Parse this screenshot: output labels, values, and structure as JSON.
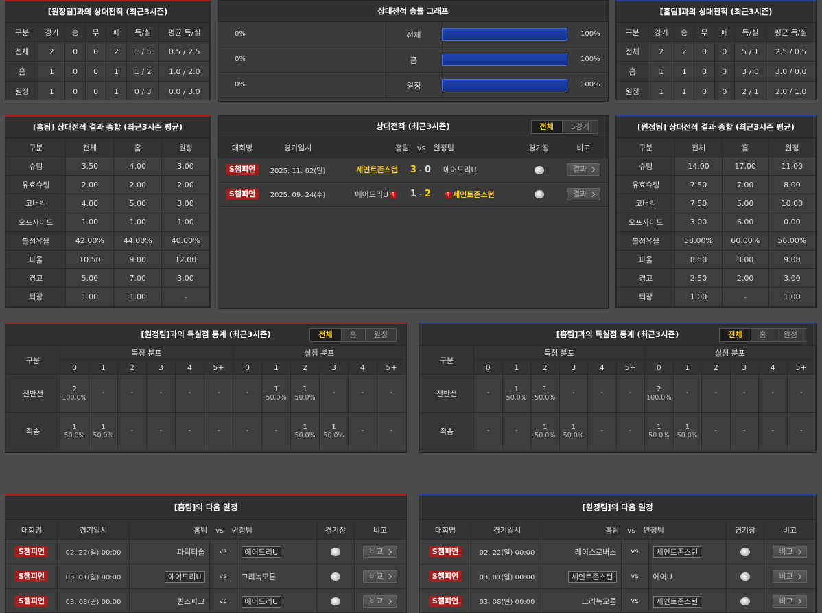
{
  "h2h_away": {
    "title": "[원정팀]과의 상대전적 (최근3시즌)",
    "columns": [
      "구분",
      "경기",
      "승",
      "무",
      "패",
      "득/실",
      "평균 득/실"
    ],
    "rows": [
      [
        "전체",
        "2",
        "0",
        "0",
        "2",
        "1 / 5",
        "0.5 / 2.5"
      ],
      [
        "홈",
        "1",
        "0",
        "0",
        "1",
        "1 / 2",
        "1.0 / 2.0"
      ],
      [
        "원정",
        "1",
        "0",
        "0",
        "1",
        "0 / 3",
        "0.0 / 3.0"
      ]
    ]
  },
  "winrate": {
    "title": "상대전적 승률 그래프",
    "bar_color": "#1f45b8",
    "rows": [
      {
        "label": "전체",
        "home": 0,
        "home_label": "0%",
        "away": 100,
        "away_label": "100%"
      },
      {
        "label": "홈",
        "home": 0,
        "home_label": "0%",
        "away": 100,
        "away_label": "100%"
      },
      {
        "label": "원정",
        "home": 0,
        "home_label": "0%",
        "away": 100,
        "away_label": "100%"
      }
    ]
  },
  "h2h_home": {
    "title": "[홈팀]과의 상대전적 (최근3시즌)",
    "columns": [
      "구분",
      "경기",
      "승",
      "무",
      "패",
      "득/실",
      "평균 득/실"
    ],
    "rows": [
      [
        "전체",
        "2",
        "2",
        "0",
        "0",
        "5 / 1",
        "2.5 / 0.5"
      ],
      [
        "홈",
        "1",
        "1",
        "0",
        "0",
        "3 / 0",
        "3.0 / 0.0"
      ],
      [
        "원정",
        "1",
        "1",
        "0",
        "0",
        "2 / 1",
        "2.0 / 1.0"
      ]
    ]
  },
  "summary_home": {
    "title": "[홈팀] 상대전적 결과 종합 (최근3시즌 평균)",
    "columns": [
      "구분",
      "전체",
      "홈",
      "원정"
    ],
    "rows": [
      [
        "슈팅",
        "3.50",
        "4.00",
        "3.00"
      ],
      [
        "유효슈팅",
        "2.00",
        "2.00",
        "2.00"
      ],
      [
        "코너킥",
        "4.00",
        "5.00",
        "3.00"
      ],
      [
        "오프사이드",
        "1.00",
        "1.00",
        "1.00"
      ],
      [
        "볼점유율",
        "42.00%",
        "44.00%",
        "40.00%"
      ],
      [
        "파울",
        "10.50",
        "9.00",
        "12.00"
      ],
      [
        "경고",
        "5.00",
        "7.00",
        "3.00"
      ],
      [
        "퇴장",
        "1.00",
        "1.00",
        "-"
      ]
    ]
  },
  "history": {
    "title": "상대전적 (최근3시즌)",
    "tabs": [
      "전체",
      "5경기"
    ],
    "columns": [
      "대회명",
      "경기일시",
      "홈팀",
      "vs",
      "원정팀",
      "경기장",
      "비고"
    ],
    "matches": [
      {
        "league": "S챔피언",
        "date": "2025. 11. 02(일)",
        "home": "세인트존스턴",
        "home_score": "3",
        "sep": "-",
        "away_score": "0",
        "away": "에어드리U",
        "winner": "home",
        "button": "결과"
      },
      {
        "league": "S챔피언",
        "date": "2025. 09. 24(수)",
        "home": "에어드리U",
        "home_red": "1",
        "home_score": "1",
        "sep": "-",
        "away_score": "2",
        "away_red": "1",
        "away": "세인트존스턴",
        "winner": "away",
        "button": "결과"
      }
    ]
  },
  "summary_away": {
    "title": "[원정팀] 상대전적 결과 종합 (최근3시즌 평균)",
    "columns": [
      "구분",
      "전체",
      "홈",
      "원정"
    ],
    "rows": [
      [
        "슈팅",
        "14.00",
        "17.00",
        "11.00"
      ],
      [
        "유효슈팅",
        "7.50",
        "7.00",
        "8.00"
      ],
      [
        "코너킥",
        "7.50",
        "5.00",
        "10.00"
      ],
      [
        "오프사이드",
        "3.00",
        "6.00",
        "0.00"
      ],
      [
        "볼점유율",
        "58.00%",
        "60.00%",
        "56.00%"
      ],
      [
        "파울",
        "8.50",
        "8.00",
        "9.00"
      ],
      [
        "경고",
        "2.50",
        "2.00",
        "3.00"
      ],
      [
        "퇴장",
        "1.00",
        "-",
        "1.00"
      ]
    ]
  },
  "goals_away": {
    "title": "[원정팀]과의 득실점 통계 (최근3시즌)",
    "tabs": [
      "전체",
      "홈",
      "원정"
    ],
    "row_header": "구분",
    "groups": [
      "득점 분포",
      "실점 분포"
    ],
    "buckets": [
      "0",
      "1",
      "2",
      "3",
      "4",
      "5+"
    ],
    "rows": [
      {
        "label": "전반전",
        "scored": [
          [
            "2",
            "100.0%"
          ],
          [
            "-"
          ],
          [
            "-"
          ],
          [
            "-"
          ],
          [
            "-"
          ],
          [
            "-"
          ]
        ],
        "conceded": [
          [
            "-"
          ],
          [
            "1",
            "50.0%"
          ],
          [
            "1",
            "50.0%"
          ],
          [
            "-"
          ],
          [
            "-"
          ],
          [
            "-"
          ]
        ]
      },
      {
        "label": "최종",
        "scored": [
          [
            "1",
            "50.0%"
          ],
          [
            "1",
            "50.0%"
          ],
          [
            "-"
          ],
          [
            "-"
          ],
          [
            "-"
          ],
          [
            "-"
          ]
        ],
        "conceded": [
          [
            "-"
          ],
          [
            "-"
          ],
          [
            "1",
            "50.0%"
          ],
          [
            "1",
            "50.0%"
          ],
          [
            "-"
          ],
          [
            "-"
          ]
        ]
      }
    ]
  },
  "goals_home": {
    "title": "[홈팀]과의 득실점 통계 (최근3시즌)",
    "tabs": [
      "전체",
      "홈",
      "원정"
    ],
    "row_header": "구분",
    "groups": [
      "득점 분포",
      "실점 분포"
    ],
    "buckets": [
      "0",
      "1",
      "2",
      "3",
      "4",
      "5+"
    ],
    "rows": [
      {
        "label": "전반전",
        "scored": [
          [
            "-"
          ],
          [
            "1",
            "50.0%"
          ],
          [
            "1",
            "50.0%"
          ],
          [
            "-"
          ],
          [
            "-"
          ],
          [
            "-"
          ]
        ],
        "conceded": [
          [
            "2",
            "100.0%"
          ],
          [
            "-"
          ],
          [
            "-"
          ],
          [
            "-"
          ],
          [
            "-"
          ],
          [
            "-"
          ]
        ]
      },
      {
        "label": "최종",
        "scored": [
          [
            "-"
          ],
          [
            "-"
          ],
          [
            "1",
            "50.0%"
          ],
          [
            "1",
            "50.0%"
          ],
          [
            "-"
          ],
          [
            "-"
          ]
        ],
        "conceded": [
          [
            "1",
            "50.0%"
          ],
          [
            "1",
            "50.0%"
          ],
          [
            "-"
          ],
          [
            "-"
          ],
          [
            "-"
          ],
          [
            "-"
          ]
        ]
      }
    ]
  },
  "schedule_home": {
    "title": "[홈팀]의 다음 일정",
    "columns": [
      "대회명",
      "경기일시",
      "홈팀",
      "vs",
      "원정팀",
      "경기장",
      "비고"
    ],
    "matches": [
      {
        "league": "S챔피언",
        "date": "02. 22(일) 00:00",
        "home": "파틱티슬",
        "vs": "vs",
        "away": "에어드리U",
        "boxed": "away",
        "button": "비교"
      },
      {
        "league": "S챔피언",
        "date": "03. 01(일) 00:00",
        "home": "에어드리U",
        "vs": "vs",
        "away": "그리녹모튼",
        "boxed": "home",
        "button": "비교"
      },
      {
        "league": "S챔피언",
        "date": "03. 08(일) 00:00",
        "home": "퀸즈파크",
        "vs": "vs",
        "away": "에어드리U",
        "boxed": "away",
        "button": "비교"
      }
    ]
  },
  "schedule_away": {
    "title": "[원정팀]의 다음 일정",
    "columns": [
      "대회명",
      "경기일시",
      "홈팀",
      "vs",
      "원정팀",
      "경기장",
      "비고"
    ],
    "matches": [
      {
        "league": "S챔피언",
        "date": "02. 22(일) 00:00",
        "home": "레이스로버스",
        "vs": "vs",
        "away": "세인트존스턴",
        "boxed": "away",
        "button": "비교"
      },
      {
        "league": "S챔피언",
        "date": "03. 01(일) 00:00",
        "home": "세인트존스턴",
        "vs": "vs",
        "away": "에어U",
        "boxed": "home",
        "button": "비교"
      },
      {
        "league": "S챔피언",
        "date": "03. 08(일) 00:00",
        "home": "그리녹모튼",
        "vs": "vs",
        "away": "세인트존스턴",
        "boxed": "away",
        "button": "비교"
      }
    ]
  }
}
